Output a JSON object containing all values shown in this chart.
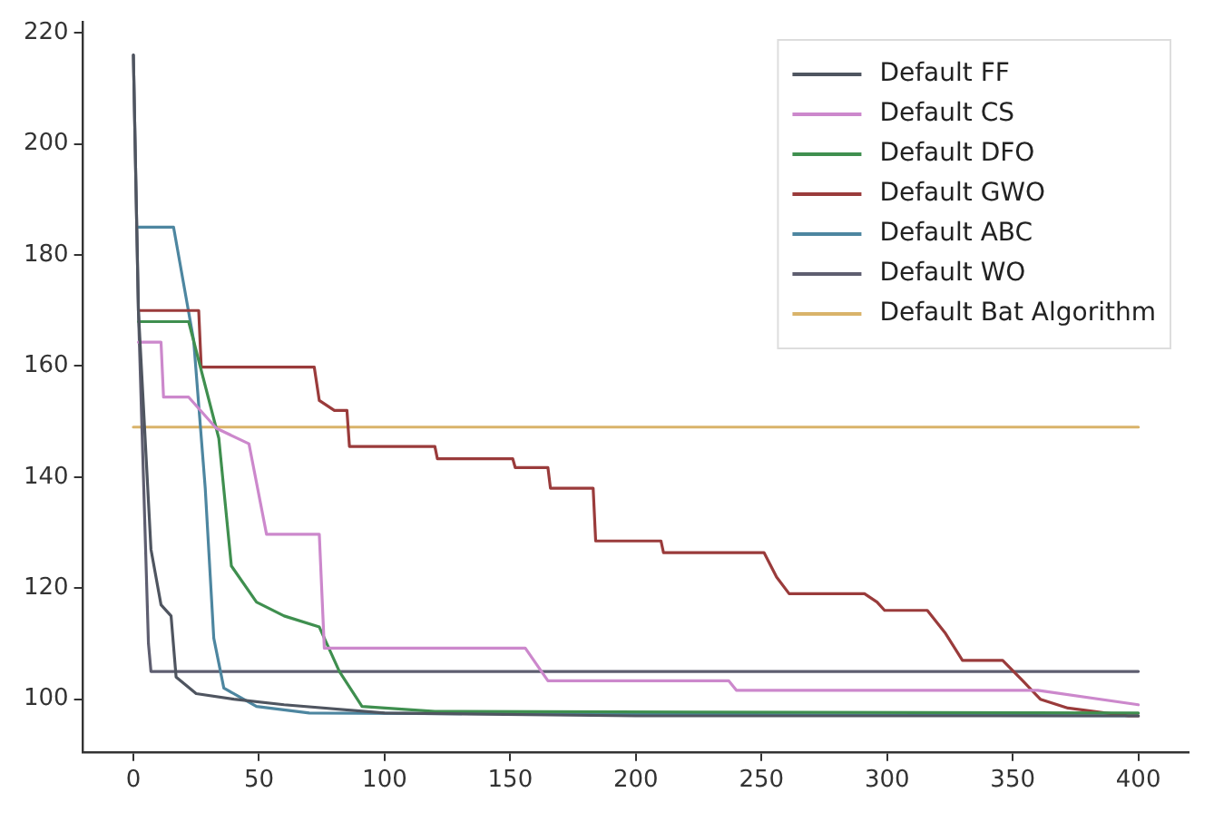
{
  "chart_data": {
    "type": "line",
    "xlim": [
      -20,
      420
    ],
    "ylim": [
      90.5,
      222
    ],
    "xticks": [
      0,
      50,
      100,
      150,
      200,
      250,
      300,
      350,
      400
    ],
    "yticks": [
      100,
      120,
      140,
      160,
      180,
      200,
      220
    ],
    "grid": false,
    "legend": "top right",
    "marker": "none",
    "line_style": "solid",
    "series": [
      {
        "name": "Default FF",
        "color": "#4f5560",
        "x": [
          0,
          2,
          7,
          11,
          15,
          17,
          25,
          40,
          60,
          100,
          200,
          400
        ],
        "values": [
          216,
          170,
          127,
          117,
          115,
          104,
          101,
          100,
          99,
          97.5,
          97,
          97
        ]
      },
      {
        "name": "Default CS",
        "color": "#cc88cc",
        "x": [
          2,
          11,
          12,
          22,
          33,
          46,
          53,
          74,
          76,
          156,
          165,
          237,
          240,
          360,
          400
        ],
        "values": [
          164.3,
          164.3,
          154.4,
          154.4,
          148.8,
          146,
          129.7,
          129.7,
          109.2,
          109.2,
          103.3,
          103.3,
          101.6,
          101.6,
          99
        ]
      },
      {
        "name": "Default DFO",
        "color": "#3f8f4f",
        "x": [
          2,
          22,
          34,
          39,
          49,
          60,
          74,
          82,
          91,
          120,
          400
        ],
        "values": [
          168,
          168,
          147,
          124,
          117.5,
          115,
          113,
          105,
          98.7,
          97.8,
          97.5
        ]
      },
      {
        "name": "Default GWO",
        "color": "#9a3b3b",
        "x": [
          2,
          26,
          27,
          72,
          74,
          80,
          85,
          86,
          120,
          121,
          151,
          152,
          165,
          166,
          183,
          184,
          210,
          211,
          251,
          256,
          261,
          291,
          296,
          299,
          316,
          323,
          330,
          346,
          354,
          361,
          372,
          396,
          400
        ],
        "values": [
          170,
          170,
          159.8,
          159.8,
          153.8,
          152,
          152,
          145.5,
          145.5,
          143.3,
          143.3,
          141.7,
          141.7,
          138,
          138,
          128.5,
          128.5,
          126.4,
          126.4,
          122,
          119,
          119,
          117.5,
          116,
          116,
          112,
          107,
          107,
          103.3,
          100,
          98.4,
          97,
          97
        ]
      },
      {
        "name": "Default ABC",
        "color": "#4d86a0",
        "x": [
          2,
          16,
          24,
          28.6,
          32,
          36,
          49,
          70,
          400
        ],
        "values": [
          185,
          185,
          164.6,
          138,
          111,
          102,
          98.7,
          97.5,
          97
        ]
      },
      {
        "name": "Default WO",
        "color": "#5e5e70",
        "x": [
          0,
          2,
          4,
          6,
          7,
          400
        ],
        "values": [
          216,
          170,
          140,
          110,
          105,
          105
        ]
      },
      {
        "name": "Default Bat Algorithm",
        "color": "#d9b36a",
        "x": [
          0,
          400
        ],
        "values": [
          149,
          149
        ]
      }
    ]
  }
}
